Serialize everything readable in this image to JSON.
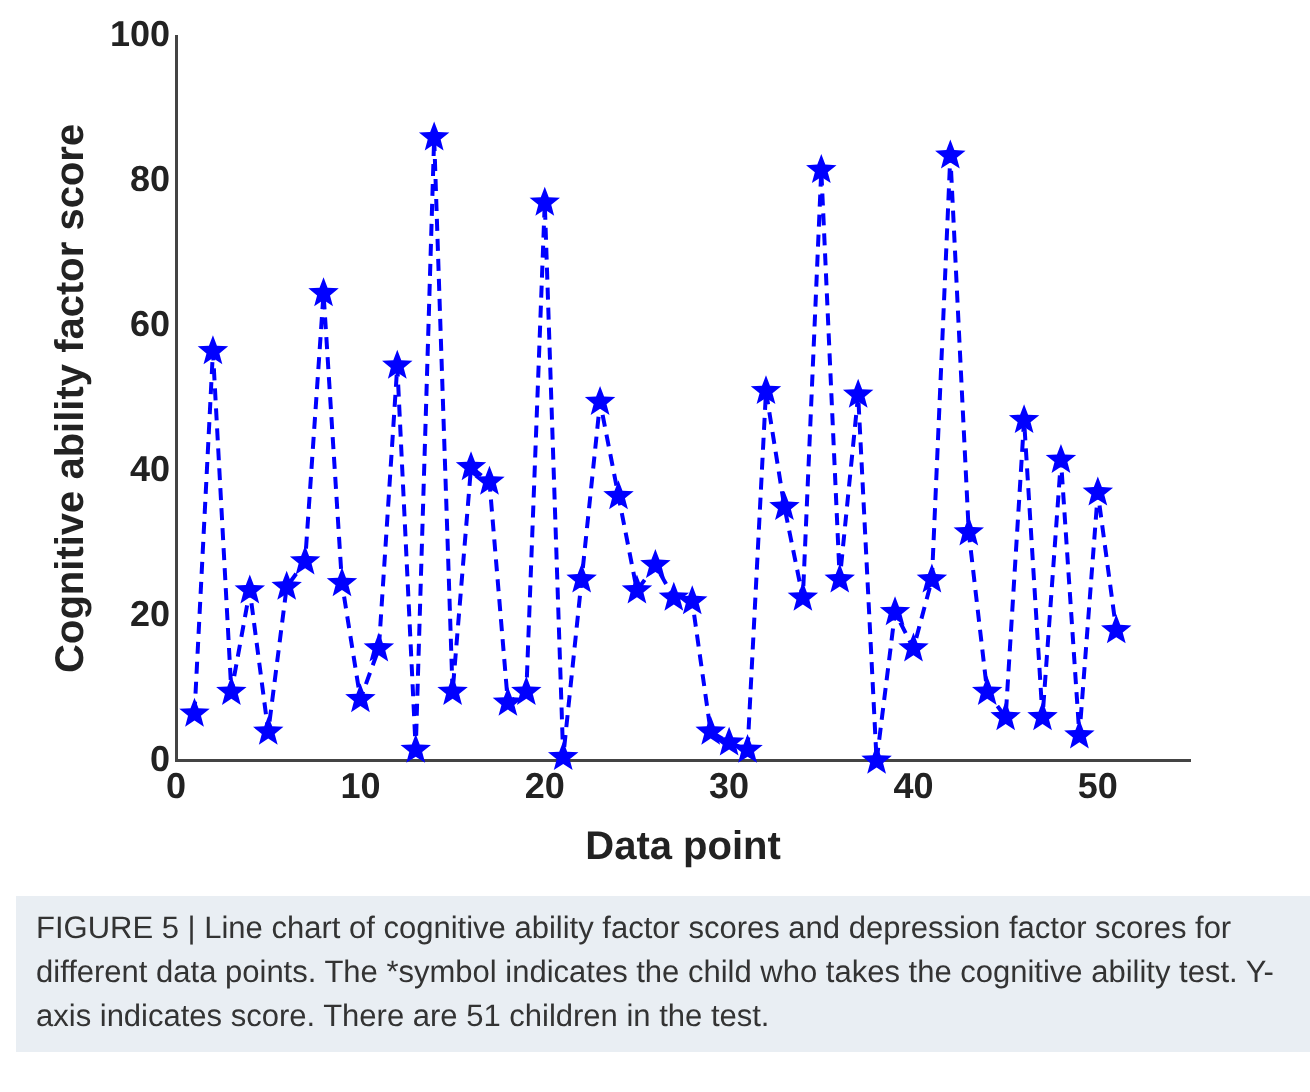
{
  "chart_data": {
    "type": "line",
    "xlabel": "Data point",
    "ylabel": "Cognitive ability factor score",
    "x": [
      1,
      2,
      3,
      4,
      5,
      6,
      7,
      8,
      9,
      10,
      11,
      12,
      13,
      14,
      15,
      16,
      17,
      18,
      19,
      20,
      21,
      22,
      23,
      24,
      25,
      26,
      27,
      28,
      29,
      30,
      31,
      32,
      33,
      34,
      35,
      36,
      37,
      38,
      39,
      40,
      41,
      42,
      43,
      44,
      45,
      46,
      47,
      48,
      49,
      50,
      51
    ],
    "series": [
      {
        "color": "#0000ff",
        "values": [
          6.5,
          56.5,
          9.5,
          23.5,
          4,
          24,
          27.5,
          64.5,
          24.5,
          8.5,
          15.5,
          54.5,
          1.5,
          86,
          9.5,
          40.5,
          38.5,
          8,
          9.5,
          77,
          0.5,
          25,
          49.5,
          36.5,
          23.5,
          27,
          22.5,
          22,
          4,
          2.5,
          1.5,
          51,
          35,
          22.5,
          81.5,
          25,
          50.5,
          0,
          20.5,
          15.5,
          25,
          83.5,
          31.5,
          9.5,
          6,
          47,
          6,
          41.5,
          3.5,
          37,
          18
        ]
      }
    ],
    "xlim": [
      0,
      55
    ],
    "xticks": [
      0,
      10,
      20,
      30,
      40,
      50
    ],
    "ylim": [
      0,
      100
    ],
    "yticks": [
      0,
      20,
      40,
      60,
      80,
      100
    ],
    "marker": "star",
    "line_style": "dashed",
    "grid": false,
    "legend": false,
    "annotations": [
      "FIGURE 5 | Line chart of cognitive ability factor scores and depression factor scores for different data points. The *symbol indicates the child who takes the cognitive ability test. Y-axis indicates score. There are 51 children in the test."
    ]
  }
}
